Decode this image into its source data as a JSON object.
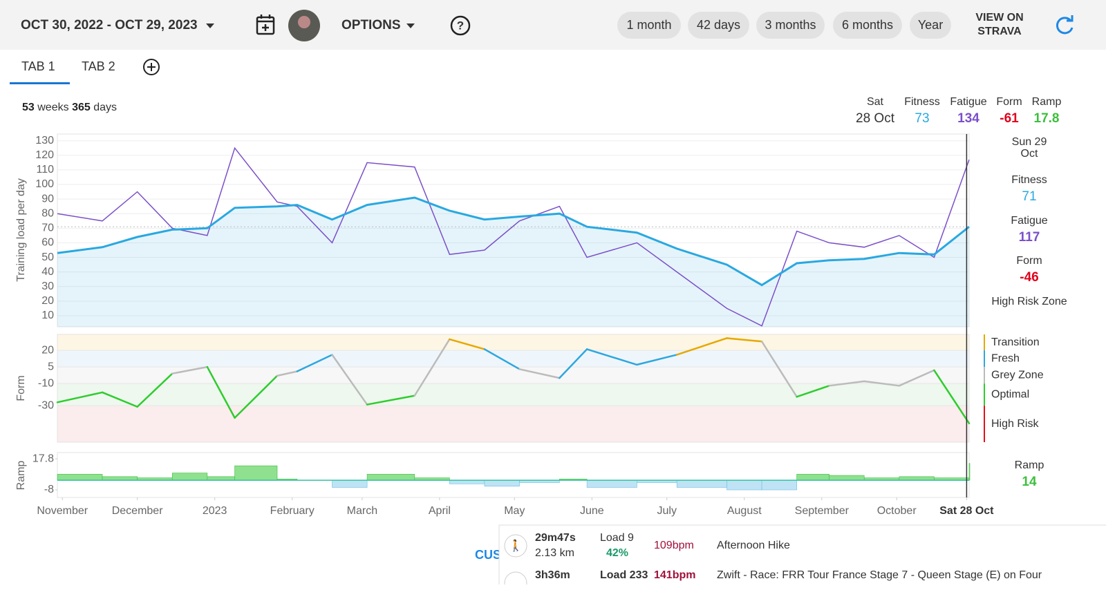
{
  "header": {
    "date_range": "OCT 30, 2022 - OCT 29, 2023",
    "options": "OPTIONS",
    "presets": [
      "1 month",
      "42 days",
      "3 months",
      "6 months",
      "Year"
    ],
    "view_on": [
      "VIEW ON",
      "STRAVA"
    ]
  },
  "tabs": [
    "TAB 1",
    "TAB 2"
  ],
  "summary": {
    "weeks": 53,
    "weeks_label": "weeks",
    "days": 365,
    "days_label": "days"
  },
  "readout": {
    "day": "Sat",
    "date": "28 Oct",
    "fitness_label": "Fitness",
    "fitness": 73,
    "fatigue_label": "Fatigue",
    "fatigue": 134,
    "form_label": "Form",
    "form": -61,
    "ramp_label": "Ramp",
    "ramp": 17.8
  },
  "side_panel": {
    "day": "Sun 29",
    "month": "Oct",
    "fitness_label": "Fitness",
    "fitness": 71,
    "fatigue_label": "Fatigue",
    "fatigue": 117,
    "form_label": "Form",
    "form": -46,
    "zone": "High Risk Zone",
    "ramp_label": "Ramp",
    "ramp": 14
  },
  "charts": {
    "xlim": [
      0,
      365
    ],
    "xticks": [
      {
        "value": 2,
        "label": "November"
      },
      {
        "value": 32,
        "label": "December"
      },
      {
        "value": 63,
        "label": "2023"
      },
      {
        "value": 94,
        "label": "February"
      },
      {
        "value": 122,
        "label": "March"
      },
      {
        "value": 153,
        "label": "April"
      },
      {
        "value": 183,
        "label": "May"
      },
      {
        "value": 214,
        "label": "June"
      },
      {
        "value": 244,
        "label": "July"
      },
      {
        "value": 275,
        "label": "August"
      },
      {
        "value": 306,
        "label": "September"
      },
      {
        "value": 336,
        "label": "October"
      },
      {
        "value": 364,
        "label": "Sat 28 Oct"
      }
    ],
    "x": [
      0,
      18,
      32,
      46,
      60,
      71,
      88,
      96,
      110,
      124,
      143,
      157,
      171,
      185,
      201,
      212,
      232,
      248,
      268,
      282,
      296,
      309,
      323,
      337,
      351,
      365
    ],
    "load": {
      "ylabel": "Training load per day",
      "ylim": [
        2.4,
        134.6
      ],
      "yticks": [
        10,
        20,
        30,
        40,
        50,
        60,
        70,
        80,
        90,
        100,
        110,
        120,
        130
      ],
      "fitness": {
        "name": "Fitness",
        "color": "#29a8e0",
        "values": [
          53,
          57,
          64,
          69,
          70,
          84,
          85,
          86,
          76,
          86,
          91,
          82,
          76,
          78,
          80,
          71,
          67,
          56,
          45,
          31,
          46,
          48,
          49,
          53,
          52,
          71
        ]
      },
      "fatigue": {
        "name": "Fatigue",
        "color": "#7b4fc9",
        "values": [
          80,
          75,
          95,
          70,
          65,
          125,
          88,
          85,
          60,
          115,
          112,
          52,
          55,
          75,
          85,
          50,
          60,
          40,
          15,
          3,
          68,
          60,
          57,
          65,
          50,
          117
        ]
      }
    },
    "form": {
      "ylabel": "Form",
      "ylim": [
        -63,
        34.4
      ],
      "yticks": [
        20,
        5,
        -10,
        -30
      ],
      "zones": [
        {
          "name": "Transition",
          "color": "#e6a800",
          "band": "#fdf6e4"
        },
        {
          "name": "Fresh",
          "color": "#2fa6de",
          "band": "#eef6fc"
        },
        {
          "name": "Grey Zone",
          "color": "#bbbbbb",
          "band": "#f7f7f7"
        },
        {
          "name": "Optimal",
          "color": "#2ecc2e",
          "band": "#eef8ee"
        },
        {
          "name": "High Risk",
          "color": "#e0101b",
          "band": "#fbeced"
        }
      ],
      "values": [
        -27,
        -18,
        -31,
        -1,
        5,
        -41,
        -3,
        1,
        16,
        -29,
        -21,
        30,
        21,
        3,
        -5,
        21,
        7,
        16,
        31,
        28,
        -22,
        -12,
        -8,
        -12,
        2,
        -46
      ]
    },
    "ramp": {
      "ylabel": "Ramp",
      "ylim": [
        -14.3,
        23
      ],
      "yticks": [
        17.8,
        -8
      ],
      "pos_color": "#8fe08f",
      "neg_color": "#bfe3f5",
      "line_color": "#2ec2a0",
      "values": [
        5,
        3,
        2,
        6,
        3,
        12,
        1,
        0,
        -6,
        5,
        2,
        -3,
        -5,
        -2,
        1,
        -6,
        -2,
        -6,
        -8,
        -8,
        5,
        4,
        2,
        3,
        2,
        14
      ]
    }
  },
  "cut_label": "CUS",
  "activities": [
    {
      "duration": "29m47s",
      "distance": "2.13 km",
      "load": "Load 9",
      "percent": "42%",
      "hr": "109bpm",
      "name": "Afternoon Hike"
    },
    {
      "duration": "3h36m",
      "load": "Load 233",
      "hr": "141bpm",
      "name": "Zwift - Race: FRR Tour France Stage 7 - Queen Stage (E) on Four"
    }
  ]
}
